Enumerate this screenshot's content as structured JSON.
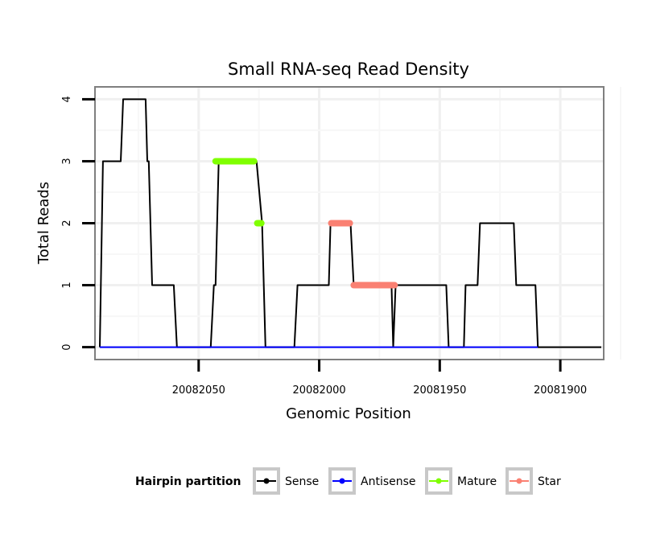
{
  "chart_data": {
    "type": "line",
    "title": "Small RNA-seq Read Density",
    "xlabel": "Genomic Position",
    "ylabel": "Total Reads",
    "x_reversed": true,
    "xlim": [
      20082093,
      20081882
    ],
    "ylim": [
      -0.2,
      4.2
    ],
    "x_ticks": [
      20082050,
      20082000,
      20081950,
      20081900
    ],
    "x_tick_labels": [
      "20082050",
      "20082000",
      "20081950",
      "20081900"
    ],
    "y_ticks": [
      0,
      1,
      2,
      3,
      4
    ],
    "y_tick_labels": [
      "0",
      "1",
      "2",
      "3",
      "4"
    ],
    "grid": true,
    "legend": {
      "title": "Hairpin partition",
      "position": "bottom",
      "items": [
        {
          "label": "Sense",
          "color": "#000000"
        },
        {
          "label": "Antisense",
          "color": "#0000ff"
        },
        {
          "label": "Mature",
          "color": "#7fff00"
        },
        {
          "label": "Star",
          "color": "#fa8072"
        }
      ]
    },
    "series": [
      {
        "name": "Sense",
        "color": "#000000",
        "points": [
          [
            20082091,
            0
          ],
          [
            20082089.7,
            3
          ],
          [
            20082082.3,
            3
          ],
          [
            20082081.3,
            4
          ],
          [
            20082072,
            4
          ],
          [
            20082071.3,
            3
          ],
          [
            20082070.7,
            3
          ],
          [
            20082069.3,
            1
          ],
          [
            20082060.3,
            1
          ],
          [
            20082059,
            0
          ],
          [
            20082045,
            0
          ],
          [
            20082043.7,
            1
          ],
          [
            20082043,
            1
          ],
          [
            20082041.7,
            3
          ],
          [
            20082026,
            3
          ],
          [
            20082023.7,
            2
          ],
          [
            20082022.3,
            0
          ],
          [
            20082010.3,
            0
          ],
          [
            20082009,
            1
          ],
          [
            20081996,
            1
          ],
          [
            20081995.3,
            2
          ],
          [
            20081987,
            2
          ],
          [
            20081985.7,
            1
          ],
          [
            20081970,
            1
          ],
          [
            20081969.3,
            0
          ],
          [
            20081968.3,
            1
          ],
          [
            20081947.3,
            1
          ],
          [
            20081946.3,
            0
          ],
          [
            20081940,
            0
          ],
          [
            20081939.3,
            1
          ],
          [
            20081934.3,
            1
          ],
          [
            20081933.3,
            2
          ],
          [
            20081919.3,
            2
          ],
          [
            20081918.3,
            1
          ],
          [
            20081910.3,
            1
          ],
          [
            20081909.3,
            0
          ],
          [
            20081883,
            0
          ]
        ]
      },
      {
        "name": "Antisense",
        "color": "#0000ff",
        "points": [
          [
            20082091,
            0
          ],
          [
            20081909.3,
            0
          ]
        ]
      },
      {
        "name": "Mature",
        "color": "#7fff00",
        "segments": [
          {
            "x": [
              20082043,
              20082027
            ],
            "y": 3
          },
          {
            "x": [
              20082025.7,
              20082024
            ],
            "y": 2
          }
        ]
      },
      {
        "name": "Star",
        "color": "#fa8072",
        "segments": [
          {
            "x": [
              20081995,
              20081987.3
            ],
            "y": 2
          },
          {
            "x": [
              20081985.7,
              20081968.7
            ],
            "y": 1
          }
        ]
      }
    ]
  }
}
